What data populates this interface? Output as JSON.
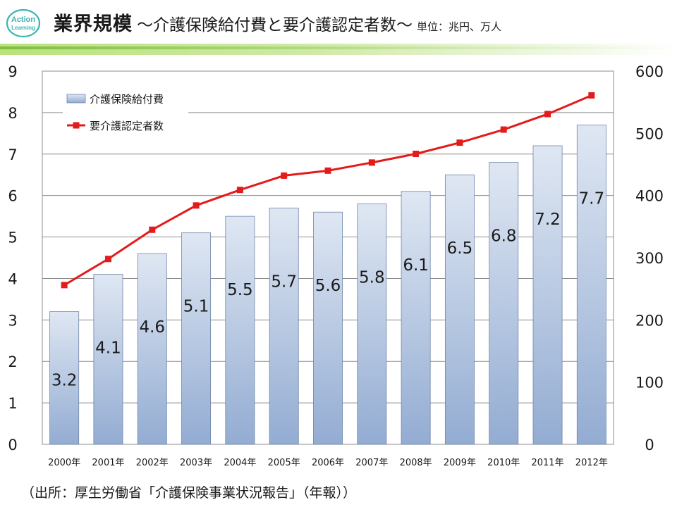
{
  "header": {
    "logo_line1": "Action",
    "logo_line2": "Learning",
    "title": "業界規模",
    "subtitle": "～介護保険給付費と要介護認定者数～",
    "unit": "単位：兆円、万人"
  },
  "footnote": "（出所：厚生労働省「介護保険事業状況報告」（年報））",
  "colors": {
    "bar_top": "#dfe7f3",
    "bar_bottom": "#93acd2",
    "bar_stroke": "#6f86a9",
    "line": "#e31b1b",
    "grid": "#8c8c8c",
    "logo": "#3bb5b0"
  },
  "chart_data": {
    "type": "bar",
    "categories": [
      "2000年",
      "2001年",
      "2002年",
      "2003年",
      "2004年",
      "2005年",
      "2006年",
      "2007年",
      "2008年",
      "2009年",
      "2010年",
      "2011年",
      "2012年"
    ],
    "series": [
      {
        "name": "介護保険給付費",
        "type": "bar",
        "axis": "left",
        "values": [
          3.2,
          4.1,
          4.6,
          5.1,
          5.5,
          5.7,
          5.6,
          5.8,
          6.1,
          6.5,
          6.8,
          7.2,
          7.7
        ],
        "labels": [
          "3.2",
          "4.1",
          "4.6",
          "5.1",
          "5.5",
          "5.7",
          "5.6",
          "5.8",
          "6.1",
          "6.5",
          "6.8",
          "7.2",
          "7.7"
        ]
      },
      {
        "name": "要介護認定者数",
        "type": "line",
        "axis": "right",
        "values": [
          256,
          298,
          345,
          384,
          409,
          432,
          440,
          453,
          467,
          485,
          506,
          531,
          561
        ]
      }
    ],
    "y_left": {
      "min": 0,
      "max": 9,
      "ticks": [
        "0",
        "1",
        "2",
        "3",
        "4",
        "5",
        "6",
        "7",
        "8",
        "9"
      ]
    },
    "y_right": {
      "min": 0,
      "max": 600,
      "ticks": [
        "0",
        "100",
        "200",
        "300",
        "400",
        "500",
        "600"
      ]
    },
    "legend_position": "top-left",
    "grid": true
  }
}
